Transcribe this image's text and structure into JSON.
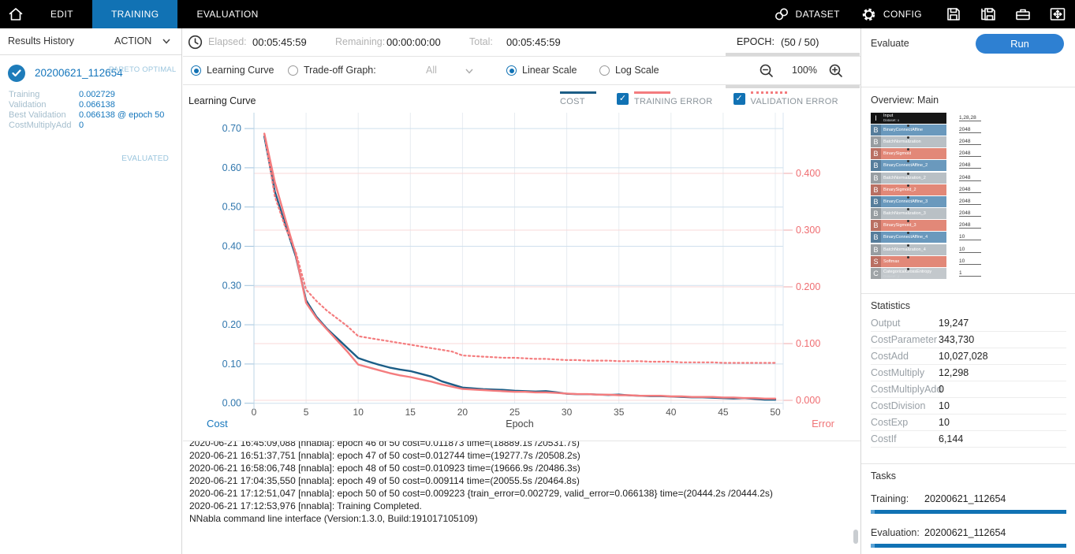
{
  "topbar": {
    "tabs": [
      {
        "label": "EDIT",
        "active": false
      },
      {
        "label": "TRAINING",
        "active": true
      },
      {
        "label": "EVALUATION",
        "active": false
      }
    ],
    "dataset_label": "DATASET",
    "config_label": "CONFIG",
    "active_tab_color": "#1172b4"
  },
  "sidebar": {
    "title": "Results History",
    "action_label": "ACTION",
    "result": {
      "name": "20200621_112654",
      "badge_top": "PARETO OPTIMAL",
      "badge_bottom": "EVALUATED",
      "metrics": [
        {
          "label": "Training",
          "value": "0.002729"
        },
        {
          "label": "Validation",
          "value": "0.066138"
        },
        {
          "label": "Best Validation",
          "value": "0.066138 @ epoch 50"
        },
        {
          "label": "CostMultiplyAdd",
          "value": "0"
        }
      ]
    }
  },
  "status_bar": {
    "elapsed_label": "Elapsed:",
    "elapsed": "00:05:45:59",
    "remaining_label": "Remaining:",
    "remaining": "00:00:00:00",
    "total_label": "Total:",
    "total": "00:05:45:59",
    "epoch_label": "EPOCH:",
    "epoch": "(50 / 50)"
  },
  "controls": {
    "radio_learning_curve": "Learning Curve",
    "radio_tradeoff": "Trade-off Graph:",
    "dropdown_value": "All",
    "radio_linear": "Linear Scale",
    "radio_log": "Log Scale",
    "zoom_level": "100%"
  },
  "chart_data": {
    "type": "line",
    "title": "Learning Curve",
    "xlabel": "Epoch",
    "x_ticks": [
      0,
      5,
      10,
      15,
      20,
      25,
      30,
      35,
      40,
      45,
      50
    ],
    "x_range": [
      0,
      50
    ],
    "grid": true,
    "legend_position": "top",
    "left_axis": {
      "label": "Cost",
      "color": "#2f76ad",
      "ticks": [
        0,
        0.1,
        0.2,
        0.3,
        0.4,
        0.5,
        0.6,
        0.7
      ],
      "range": [
        0,
        0.74
      ],
      "tick_format": 2
    },
    "right_axis": {
      "label": "Error",
      "color": "#ef6d71",
      "ticks": [
        0,
        0.1,
        0.2,
        0.3,
        0.4
      ],
      "range": [
        0,
        0.56
      ],
      "tick_format": 3
    },
    "legend": [
      {
        "name": "COST",
        "checkbox": false,
        "style": "solid",
        "color": "#1b5d86"
      },
      {
        "name": "TRAINING ERROR",
        "checkbox": true,
        "style": "solid",
        "color": "#f47c7e"
      },
      {
        "name": "VALIDATION ERROR",
        "checkbox": true,
        "style": "dotted",
        "color": "#f47c7e"
      }
    ],
    "series": [
      {
        "name": "COST",
        "axis": "left",
        "color": "#1b5d86",
        "style": "solid",
        "x_start": 1,
        "values": [
          0.68,
          0.54,
          0.455,
          0.375,
          0.262,
          0.22,
          0.19,
          0.165,
          0.14,
          0.115,
          0.106,
          0.098,
          0.091,
          0.086,
          0.082,
          0.075,
          0.068,
          0.056,
          0.048,
          0.04,
          0.038,
          0.036,
          0.035,
          0.034,
          0.032,
          0.031,
          0.03,
          0.031,
          0.028,
          0.024,
          0.023,
          0.023,
          0.022,
          0.021,
          0.022,
          0.02,
          0.019,
          0.018,
          0.018,
          0.017,
          0.016,
          0.015,
          0.015,
          0.014,
          0.013,
          0.012,
          0.013,
          0.011,
          0.009,
          0.009
        ]
      },
      {
        "name": "TRAINING ERROR",
        "axis": "right",
        "color": "#f47c7e",
        "style": "solid",
        "x_start": 1,
        "values": [
          0.47,
          0.385,
          0.32,
          0.258,
          0.172,
          0.145,
          0.125,
          0.105,
          0.085,
          0.063,
          0.058,
          0.053,
          0.048,
          0.044,
          0.041,
          0.037,
          0.033,
          0.028,
          0.024,
          0.02,
          0.019,
          0.018,
          0.017,
          0.016,
          0.015,
          0.015,
          0.014,
          0.014,
          0.013,
          0.012,
          0.011,
          0.011,
          0.01,
          0.01,
          0.009,
          0.009,
          0.008,
          0.008,
          0.008,
          0.007,
          0.007,
          0.006,
          0.006,
          0.006,
          0.005,
          0.005,
          0.004,
          0.004,
          0.003,
          0.003
        ]
      },
      {
        "name": "VALIDATION ERROR",
        "axis": "right",
        "color": "#f47c7e",
        "style": "dotted",
        "x_start": 1,
        "values": [
          0.47,
          0.36,
          0.305,
          0.262,
          0.195,
          0.175,
          0.158,
          0.144,
          0.13,
          0.113,
          0.11,
          0.107,
          0.104,
          0.101,
          0.098,
          0.095,
          0.092,
          0.089,
          0.086,
          0.079,
          0.078,
          0.077,
          0.076,
          0.075,
          0.075,
          0.074,
          0.073,
          0.073,
          0.072,
          0.071,
          0.071,
          0.07,
          0.07,
          0.07,
          0.069,
          0.069,
          0.069,
          0.068,
          0.068,
          0.068,
          0.067,
          0.067,
          0.067,
          0.067,
          0.066,
          0.066,
          0.066,
          0.066,
          0.066,
          0.066
        ]
      }
    ]
  },
  "log": {
    "lines": [
      "2020-06-21 16:45:09,088 [nnabla]: epoch 46 of 50 cost=0.011873  time=(18889.1s /20531.7s)",
      "2020-06-21 16:51:37,751 [nnabla]: epoch 47 of 50 cost=0.012744  time=(19277.7s /20508.2s)",
      "2020-06-21 16:58:06,748 [nnabla]: epoch 48 of 50 cost=0.010923  time=(19666.9s /20486.3s)",
      "2020-06-21 17:04:35,550 [nnabla]: epoch 49 of 50 cost=0.009114  time=(20055.5s /20464.8s)",
      "2020-06-21 17:12:51,047 [nnabla]: epoch 50 of 50 cost=0.009223  {train_error=0.002729, valid_error=0.066138} time=(20444.2s /20444.2s)",
      "2020-06-21 17:12:53,976 [nnabla]: Training Completed.",
      "NNabla command line interface (Version:1.3.0, Build:191017105109)"
    ]
  },
  "right_panel": {
    "evaluate_label": "Evaluate",
    "run_label": "Run",
    "overview_title": "Overview: Main",
    "network_layers": [
      {
        "letter": "I",
        "name": "Input",
        "sub": "Dataset: x",
        "color": "#161616",
        "value": "1,28,28"
      },
      {
        "letter": "B",
        "name": "BinaryConnectAffine",
        "color": "#6a99bd",
        "value": "2048"
      },
      {
        "letter": "B",
        "name": "BatchNormalization",
        "color": "#b9c0c5",
        "value": "2048"
      },
      {
        "letter": "B",
        "name": "BinarySigmoid",
        "color": "#e28878",
        "value": "2048"
      },
      {
        "letter": "B",
        "name": "BinaryConnectAffine_2",
        "color": "#6a99bd",
        "value": "2048"
      },
      {
        "letter": "B",
        "name": "BatchNormalization_2",
        "color": "#b9c0c5",
        "value": "2048"
      },
      {
        "letter": "B",
        "name": "BinarySigmoid_2",
        "color": "#e28878",
        "value": "2048"
      },
      {
        "letter": "B",
        "name": "BinaryConnectAffine_3",
        "color": "#6a99bd",
        "value": "2048"
      },
      {
        "letter": "B",
        "name": "BatchNormalization_3",
        "color": "#b9c0c5",
        "value": "2048"
      },
      {
        "letter": "B",
        "name": "BinarySigmoid_3",
        "color": "#e28878",
        "value": "2048"
      },
      {
        "letter": "B",
        "name": "BinaryConnectAffine_4",
        "color": "#6a99bd",
        "value": "10"
      },
      {
        "letter": "B",
        "name": "BatchNormalization_4",
        "color": "#b9c0c5",
        "value": "10"
      },
      {
        "letter": "S",
        "name": "Softmax",
        "color": "#e28878",
        "value": "10"
      },
      {
        "letter": "C",
        "name": "CategoricalCrossEntropy",
        "sub": "Dataset: y",
        "color": "#c3c8cc",
        "value": "1"
      }
    ],
    "statistics": {
      "title": "Statistics",
      "rows": [
        {
          "label": "Output",
          "value": "19,247"
        },
        {
          "label": "CostParameter",
          "value": "343,730"
        },
        {
          "label": "CostAdd",
          "value": "10,027,028"
        },
        {
          "label": "CostMultiply",
          "value": "12,298"
        },
        {
          "label": "CostMultiplyAdd",
          "value": "0"
        },
        {
          "label": "CostDivision",
          "value": "10"
        },
        {
          "label": "CostExp",
          "value": "10"
        },
        {
          "label": "CostIf",
          "value": "6,144"
        }
      ]
    },
    "tasks": {
      "title": "Tasks",
      "rows": [
        {
          "label": "Training:",
          "value": "20200621_112654",
          "progress": 100
        },
        {
          "label": "Evaluation:",
          "value": "20200621_112654",
          "progress": 100
        }
      ]
    }
  }
}
